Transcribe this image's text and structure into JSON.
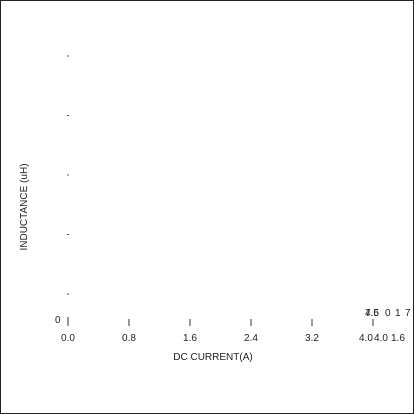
{
  "chart_data": {
    "type": "line",
    "title": "",
    "xlabel": "DC CURRENT(A)",
    "ylabel": "INDUCTANCE (uH)",
    "x_ticks": [
      "0.0",
      "0.8",
      "1.6",
      "2.4",
      "3.2",
      "4.0"
    ],
    "x_tick_values": [
      0.0,
      0.8,
      1.6,
      2.4,
      3.2,
      4.0
    ],
    "x_extra_tick_labels": [
      "4.0",
      "1.6"
    ],
    "y_tick_labels": [
      "0"
    ],
    "y_minor_tick_count": 5,
    "xlim": [
      0.0,
      4.0
    ],
    "grid": false,
    "legend": "none",
    "overlapping_labels": [
      "7.5",
      "4.6",
      "0",
      "1",
      "7"
    ],
    "series": []
  }
}
